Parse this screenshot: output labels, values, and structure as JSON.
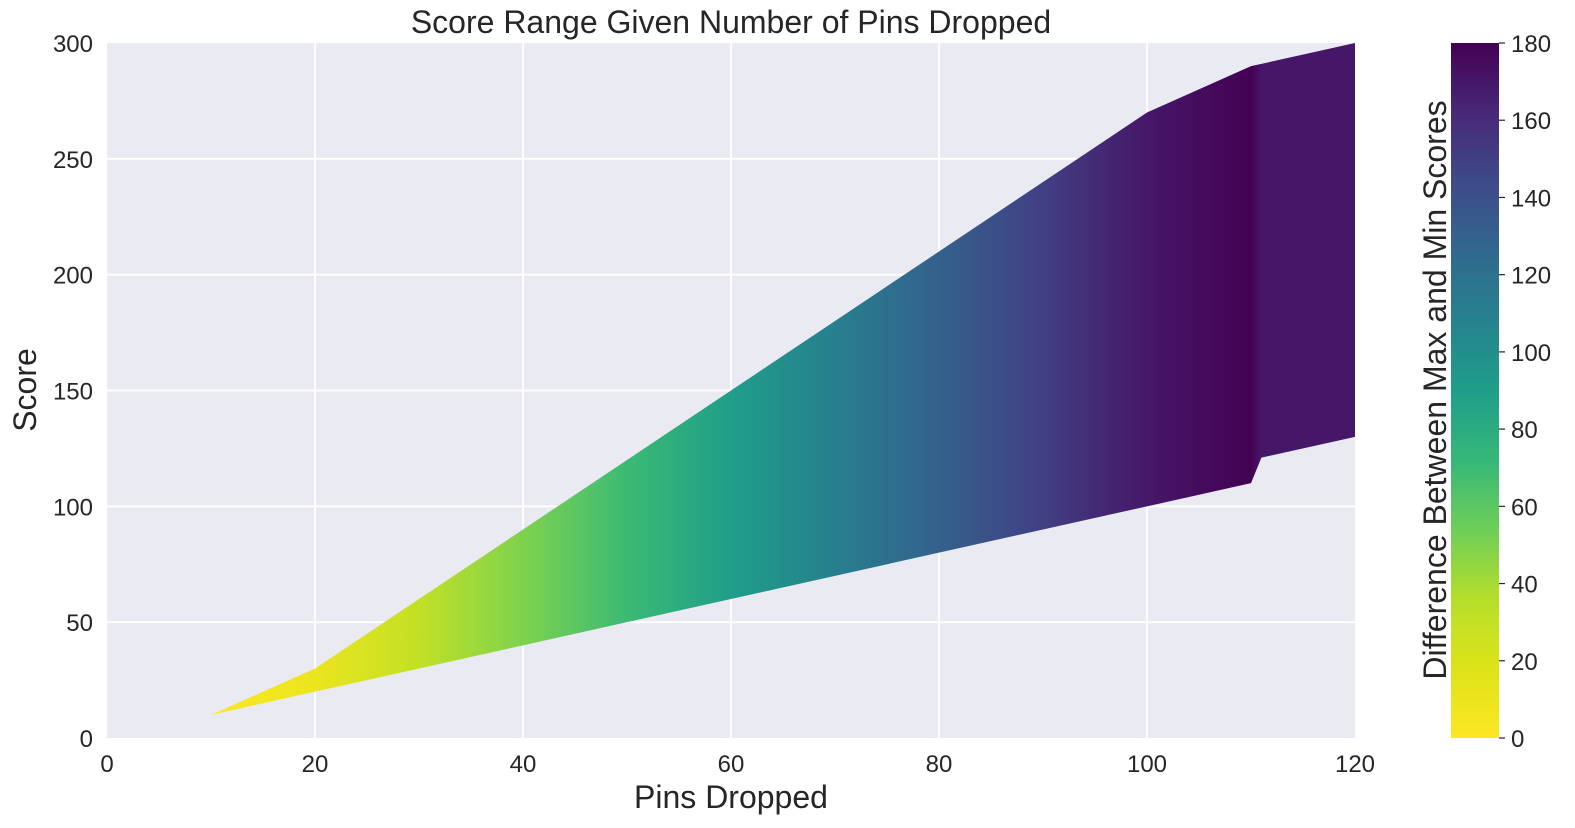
{
  "chart_data": {
    "type": "area",
    "title": "Score Range Given Number of Pins Dropped",
    "xlabel": "Pins Dropped",
    "ylabel": "Score",
    "xlim": [
      0,
      120
    ],
    "ylim": [
      0,
      300
    ],
    "x_ticks": [
      0,
      20,
      40,
      60,
      80,
      100,
      120
    ],
    "y_ticks": [
      0,
      50,
      100,
      150,
      200,
      250,
      300
    ],
    "grid": true,
    "series": [
      {
        "x": [
          0,
          10,
          20,
          30,
          40,
          50,
          60,
          70,
          80,
          90,
          100,
          110,
          111,
          120
        ],
        "max": [
          0,
          10,
          30,
          60,
          90,
          120,
          150,
          180,
          210,
          240,
          270,
          290,
          291,
          300
        ],
        "min": [
          0,
          10,
          20,
          30,
          40,
          50,
          60,
          70,
          80,
          90,
          100,
          110,
          121,
          130
        ]
      }
    ],
    "colorbar": {
      "label": "Difference Between Max and Min Scores",
      "colormap": "viridis_r",
      "range": [
        0,
        180
      ],
      "ticks": [
        0,
        20,
        40,
        60,
        80,
        100,
        120,
        140,
        160,
        180
      ]
    }
  },
  "colors": {
    "plot_background": "#eaeaf2",
    "grid": "#ffffff",
    "text": "#262626"
  }
}
